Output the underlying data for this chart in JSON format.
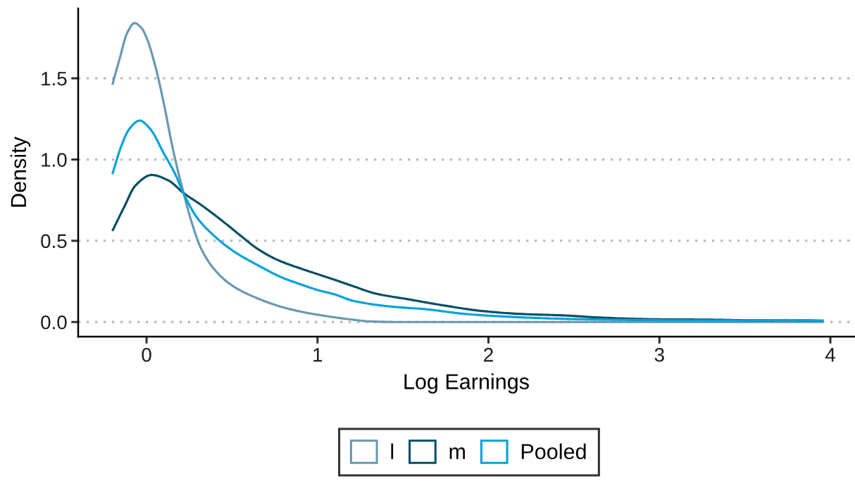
{
  "chart_data": {
    "type": "line",
    "xlabel": "Log Earnings",
    "ylabel": "Density",
    "xlim": [
      -0.4,
      4.14
    ],
    "ylim": [
      -0.09,
      1.93
    ],
    "xticks": [
      0,
      1,
      2,
      3,
      4
    ],
    "yticks": [
      {
        "value": 0,
        "label": "0.0"
      },
      0.5,
      {
        "value": 1,
        "label": "1.0"
      },
      1.5
    ],
    "grid": "y",
    "legend": "bottom",
    "series": [
      {
        "name": "l",
        "color": "#6a98ae",
        "x": [
          -0.2,
          -0.155,
          -0.113,
          -0.07,
          -0.03,
          0.0,
          0.05,
          0.1,
          0.155,
          0.215,
          0.265,
          0.32,
          0.4,
          0.5,
          0.65,
          0.8,
          0.92,
          1.06,
          1.2,
          1.3,
          1.45,
          2.0,
          3.0,
          3.96
        ],
        "values": [
          1.46,
          1.63,
          1.78,
          1.84,
          1.81,
          1.75,
          1.58,
          1.35,
          1.06,
          0.8,
          0.61,
          0.45,
          0.32,
          0.225,
          0.145,
          0.09,
          0.06,
          0.035,
          0.015,
          0.004,
          0.0,
          0.0,
          0.0,
          0.0
        ]
      },
      {
        "name": "m",
        "color": "#064f66",
        "x": [
          -0.2,
          -0.13,
          -0.065,
          0.03,
          0.13,
          0.215,
          0.32,
          0.44,
          0.54,
          0.65,
          0.76,
          0.9,
          1.0,
          1.1,
          1.21,
          1.34,
          1.53,
          1.75,
          1.96,
          2.18,
          2.45,
          2.7,
          3.03,
          3.25,
          3.57,
          3.74,
          3.96
        ],
        "values": [
          0.56,
          0.71,
          0.84,
          0.905,
          0.87,
          0.795,
          0.72,
          0.625,
          0.54,
          0.45,
          0.385,
          0.33,
          0.295,
          0.26,
          0.22,
          0.175,
          0.14,
          0.1,
          0.068,
          0.05,
          0.04,
          0.025,
          0.016,
          0.015,
          0.01,
          0.011,
          0.008
        ]
      },
      {
        "name": "Pooled",
        "color": "#00a3d9",
        "x": [
          -0.2,
          -0.147,
          -0.1,
          -0.04,
          0.02,
          0.1,
          0.17,
          0.215,
          0.29,
          0.375,
          0.51,
          0.65,
          0.79,
          0.92,
          1.0,
          1.1,
          1.21,
          1.43,
          1.64,
          1.86,
          2.07,
          2.39,
          2.71,
          3.14,
          3.5,
          3.74,
          3.96
        ],
        "values": [
          0.91,
          1.085,
          1.19,
          1.24,
          1.19,
          1.04,
          0.905,
          0.795,
          0.65,
          0.55,
          0.435,
          0.35,
          0.275,
          0.225,
          0.197,
          0.17,
          0.13,
          0.095,
          0.078,
          0.05,
          0.035,
          0.021,
          0.014,
          0.01,
          0.009,
          0.012,
          0.008
        ]
      }
    ]
  }
}
